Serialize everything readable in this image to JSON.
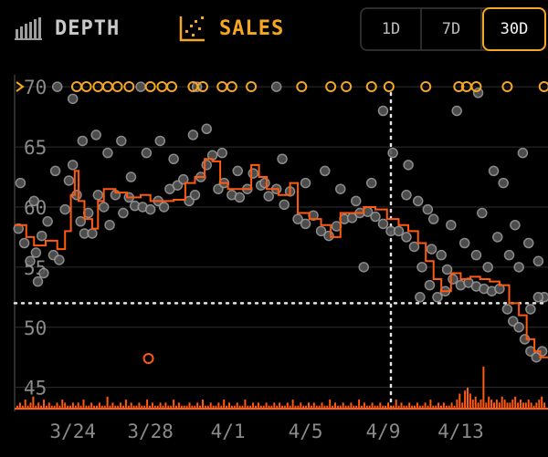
{
  "tabs": {
    "depth_label": "DEPTH",
    "sales_label": "SALES"
  },
  "range": {
    "options": [
      "1D",
      "7D",
      "30D"
    ],
    "selected": "30D"
  },
  "colors": {
    "accent": "#f5a623",
    "line": "#ff5a10",
    "dot": "#7a7a7a",
    "grid": "#2e2e2e",
    "volume": "#ff5a10"
  },
  "chart_data": {
    "type": "scatter",
    "x_tick_labels": [
      "3/24",
      "3/28",
      "4/1",
      "4/5",
      "4/9",
      "4/13"
    ],
    "x_tick_days": [
      3,
      7,
      11,
      15,
      19,
      23
    ],
    "x_range_days": [
      0,
      27.5
    ],
    "y_tick_labels": [
      "45",
      "50",
      "55",
      "60",
      "65",
      "70"
    ],
    "ylim": [
      43,
      71
    ],
    "reference_y": 52,
    "crosshair_day": 19.4,
    "grid": true,
    "price_line": [
      [
        0.0,
        58.5
      ],
      [
        0.6,
        57.5
      ],
      [
        1.0,
        56.8
      ],
      [
        1.6,
        57.2
      ],
      [
        2.2,
        56.5
      ],
      [
        2.6,
        58.0
      ],
      [
        2.9,
        61.0
      ],
      [
        3.1,
        63.0
      ],
      [
        3.3,
        60.5
      ],
      [
        3.6,
        59.0
      ],
      [
        4.0,
        58.2
      ],
      [
        4.3,
        60.5
      ],
      [
        4.6,
        61.5
      ],
      [
        5.2,
        61.2
      ],
      [
        5.8,
        60.8
      ],
      [
        6.5,
        61.0
      ],
      [
        7.0,
        60.5
      ],
      [
        7.6,
        60.5
      ],
      [
        8.2,
        60.6
      ],
      [
        8.8,
        62.0
      ],
      [
        9.3,
        62.5
      ],
      [
        9.8,
        64.0
      ],
      [
        10.2,
        63.8
      ],
      [
        10.6,
        62.0
      ],
      [
        11.0,
        61.5
      ],
      [
        11.6,
        61.5
      ],
      [
        12.2,
        63.5
      ],
      [
        12.6,
        62.5
      ],
      [
        13.0,
        61.5
      ],
      [
        13.6,
        61.0
      ],
      [
        14.2,
        62.0
      ],
      [
        14.6,
        59.5
      ],
      [
        15.2,
        59.0
      ],
      [
        15.8,
        58.5
      ],
      [
        16.3,
        57.5
      ],
      [
        16.8,
        59.5
      ],
      [
        17.4,
        59.5
      ],
      [
        18.0,
        60.0
      ],
      [
        18.6,
        59.8
      ],
      [
        19.2,
        59.0
      ],
      [
        19.8,
        58.5
      ],
      [
        20.3,
        58.0
      ],
      [
        20.8,
        57.0
      ],
      [
        21.2,
        55.5
      ],
      [
        21.6,
        54.0
      ],
      [
        22.0,
        53.0
      ],
      [
        22.5,
        54.5
      ],
      [
        23.0,
        54.0
      ],
      [
        23.5,
        54.2
      ],
      [
        24.0,
        54.0
      ],
      [
        24.5,
        53.8
      ],
      [
        25.0,
        53.5
      ],
      [
        25.5,
        52.0
      ],
      [
        26.0,
        51.0
      ],
      [
        26.4,
        49.0
      ],
      [
        26.8,
        48.0
      ],
      [
        27.1,
        47.5
      ],
      [
        27.5,
        47.5
      ]
    ],
    "sales_dots": [
      [
        0.2,
        58.2
      ],
      [
        0.5,
        57.0
      ],
      [
        0.8,
        55.5
      ],
      [
        1.1,
        56.2
      ],
      [
        1.4,
        57.6
      ],
      [
        1.7,
        58.8
      ],
      [
        2.0,
        56.0
      ],
      [
        2.3,
        55.6
      ],
      [
        2.6,
        59.8
      ],
      [
        2.8,
        62.2
      ],
      [
        3.0,
        63.5
      ],
      [
        3.2,
        61.0
      ],
      [
        3.4,
        58.8
      ],
      [
        3.6,
        57.8
      ],
      [
        3.8,
        59.5
      ],
      [
        4.0,
        57.8
      ],
      [
        4.3,
        61.0
      ],
      [
        4.6,
        60.0
      ],
      [
        4.9,
        58.5
      ],
      [
        5.2,
        61.0
      ],
      [
        5.6,
        59.5
      ],
      [
        5.9,
        60.8
      ],
      [
        6.2,
        60.1
      ],
      [
        6.6,
        60.0
      ],
      [
        7.0,
        59.8
      ],
      [
        7.4,
        60.5
      ],
      [
        7.7,
        60.0
      ],
      [
        8.0,
        61.5
      ],
      [
        8.4,
        61.8
      ],
      [
        8.7,
        62.3
      ],
      [
        9.0,
        60.5
      ],
      [
        9.3,
        61.0
      ],
      [
        9.6,
        62.5
      ],
      [
        9.9,
        63.5
      ],
      [
        10.2,
        64.3
      ],
      [
        10.5,
        61.5
      ],
      [
        10.8,
        62.0
      ],
      [
        11.2,
        61.0
      ],
      [
        11.6,
        60.8
      ],
      [
        12.0,
        61.5
      ],
      [
        12.3,
        62.8
      ],
      [
        12.7,
        61.8
      ],
      [
        13.1,
        60.9
      ],
      [
        13.5,
        61.5
      ],
      [
        13.9,
        60.2
      ],
      [
        14.2,
        61.3
      ],
      [
        14.6,
        59.0
      ],
      [
        15.0,
        58.6
      ],
      [
        15.4,
        59.3
      ],
      [
        15.8,
        58.0
      ],
      [
        16.2,
        57.6
      ],
      [
        16.6,
        58.4
      ],
      [
        17.0,
        59.0
      ],
      [
        17.4,
        59.1
      ],
      [
        17.8,
        59.5
      ],
      [
        18.2,
        59.6
      ],
      [
        18.6,
        59.2
      ],
      [
        19.0,
        58.6
      ],
      [
        19.4,
        58.0
      ],
      [
        19.8,
        58.0
      ],
      [
        20.2,
        57.5
      ],
      [
        20.6,
        56.7
      ],
      [
        21.0,
        55.0
      ],
      [
        21.4,
        53.5
      ],
      [
        21.8,
        52.5
      ],
      [
        22.2,
        53.0
      ],
      [
        22.6,
        54.0
      ],
      [
        23.0,
        53.5
      ],
      [
        23.4,
        53.7
      ],
      [
        23.8,
        53.4
      ],
      [
        24.2,
        53.2
      ],
      [
        24.6,
        53.0
      ],
      [
        25.0,
        53.2
      ],
      [
        25.4,
        51.5
      ],
      [
        25.7,
        50.5
      ],
      [
        26.0,
        50.0
      ],
      [
        26.3,
        49.0
      ],
      [
        26.6,
        48.0
      ],
      [
        26.9,
        47.5
      ],
      [
        27.2,
        48.0
      ],
      [
        0.3,
        62.0
      ],
      [
        1.0,
        60.5
      ],
      [
        1.5,
        54.5
      ],
      [
        2.1,
        63.0
      ],
      [
        3.5,
        65.5
      ],
      [
        4.8,
        64.5
      ],
      [
        5.5,
        65.5
      ],
      [
        6.0,
        62.5
      ],
      [
        6.8,
        64.5
      ],
      [
        7.5,
        65.5
      ],
      [
        8.2,
        64.0
      ],
      [
        9.2,
        66.0
      ],
      [
        9.9,
        66.5
      ],
      [
        10.7,
        64.5
      ],
      [
        11.5,
        63.0
      ],
      [
        12.9,
        62.0
      ],
      [
        13.8,
        64.0
      ],
      [
        15.0,
        62.0
      ],
      [
        16.0,
        63.0
      ],
      [
        16.8,
        61.5
      ],
      [
        17.6,
        60.5
      ],
      [
        18.4,
        62.0
      ],
      [
        19.0,
        68.0
      ],
      [
        19.5,
        64.5
      ],
      [
        20.2,
        61.0
      ],
      [
        20.8,
        60.5
      ],
      [
        21.6,
        59.0
      ],
      [
        22.0,
        56.0
      ],
      [
        22.5,
        58.5
      ],
      [
        23.2,
        57.0
      ],
      [
        23.8,
        56.0
      ],
      [
        24.4,
        55.0
      ],
      [
        24.9,
        57.5
      ],
      [
        25.5,
        56.0
      ],
      [
        26.0,
        55.0
      ],
      [
        26.5,
        57.0
      ],
      [
        27.0,
        55.5
      ],
      [
        27.3,
        52.5
      ],
      [
        24.1,
        59.5
      ],
      [
        25.2,
        62.0
      ],
      [
        26.2,
        64.5
      ],
      [
        22.8,
        68.0
      ],
      [
        23.9,
        69.5
      ],
      [
        24.7,
        63.0
      ],
      [
        21.5,
        56.5
      ],
      [
        22.3,
        54.8
      ],
      [
        20.3,
        63.5
      ],
      [
        3.0,
        69.0
      ],
      [
        2.2,
        70.0
      ],
      [
        6.5,
        70.0
      ],
      [
        9.4,
        70.0
      ],
      [
        13.5,
        70.0
      ],
      [
        26.6,
        51.5
      ],
      [
        27.0,
        52.5
      ],
      [
        25.8,
        58.5
      ],
      [
        20.9,
        52.5
      ],
      [
        21.3,
        59.8
      ],
      [
        18.0,
        55.0
      ],
      [
        1.2,
        53.8
      ],
      [
        4.2,
        66.0
      ]
    ],
    "top_edge_sales_days": [
      3.2,
      3.7,
      4.3,
      4.8,
      5.3,
      5.9,
      7.0,
      7.6,
      8.1,
      9.2,
      9.7,
      10.7,
      11.2,
      12.2,
      14.8,
      16.3,
      17.1,
      18.4,
      19.3,
      21.2,
      22.9,
      23.3,
      23.8,
      25.4,
      27.3
    ],
    "outlier_sales": [
      [
        6.9,
        47.4
      ]
    ],
    "volume": [
      1,
      2,
      1,
      3,
      1,
      2,
      4,
      1,
      2,
      1,
      3,
      1,
      2,
      1,
      1,
      2,
      1,
      3,
      2,
      1,
      1,
      2,
      1,
      2,
      1,
      3,
      1,
      1,
      2,
      1,
      1,
      2,
      1,
      1,
      4,
      1,
      2,
      1,
      1,
      2,
      1,
      3,
      1,
      2,
      1,
      1,
      2,
      1,
      1,
      3,
      1,
      2,
      1,
      1,
      2,
      1,
      2,
      1,
      1,
      3,
      1,
      2,
      1,
      1,
      1,
      2,
      1,
      1,
      2,
      1,
      3,
      1,
      1,
      2,
      1,
      1,
      2,
      1,
      3,
      1,
      2,
      1,
      1,
      2,
      1,
      1,
      3,
      1,
      1,
      2,
      1,
      2,
      1,
      1,
      2,
      1,
      1,
      2,
      1,
      2,
      1,
      1,
      2,
      1,
      3,
      1,
      1,
      2,
      1,
      1,
      2,
      1,
      2,
      1,
      1,
      2,
      1,
      1,
      3,
      1,
      2,
      1,
      1,
      2,
      1,
      1,
      2,
      1,
      1,
      3,
      1,
      2,
      1,
      1,
      2,
      1,
      1,
      2,
      1,
      1,
      2,
      1,
      1,
      3,
      1,
      2,
      1,
      1,
      2,
      1,
      1,
      2,
      1,
      1,
      2,
      1,
      3,
      1,
      1,
      2,
      1,
      2,
      1,
      1,
      2,
      1,
      3,
      5,
      2,
      6,
      7,
      5,
      3,
      4,
      2,
      3,
      14,
      2,
      4,
      3,
      2,
      3,
      2,
      4,
      3,
      2,
      2,
      3,
      4,
      2,
      3,
      2,
      2,
      3,
      2,
      1,
      2,
      3,
      4,
      2
    ]
  }
}
